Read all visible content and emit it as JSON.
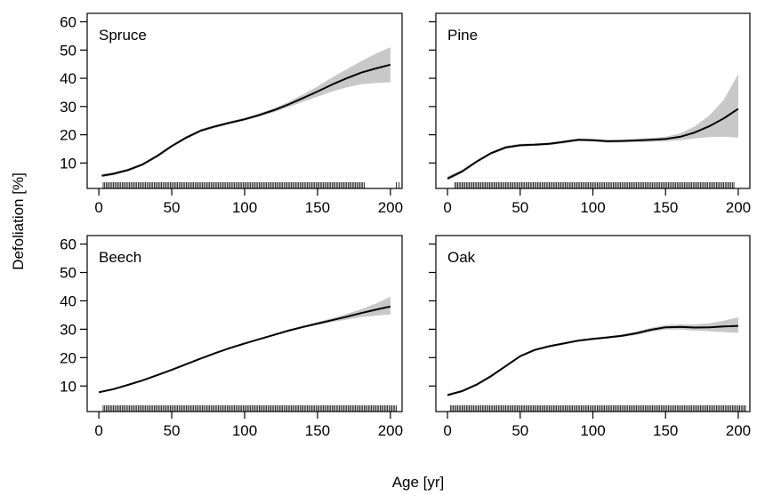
{
  "figure": {
    "ylabel": "Defoliation [%]",
    "xlabel": "Age [yr]"
  },
  "chart_data": [
    {
      "type": "line",
      "title": "Spruce",
      "xlim": [
        -8,
        208
      ],
      "ylim": [
        1,
        63
      ],
      "xticks": [
        0,
        50,
        100,
        150,
        200
      ],
      "yticks": [
        10,
        20,
        30,
        40,
        50,
        60
      ],
      "x": [
        2,
        10,
        20,
        30,
        40,
        50,
        60,
        70,
        80,
        90,
        100,
        110,
        120,
        130,
        140,
        150,
        160,
        170,
        180,
        190,
        200
      ],
      "y": [
        5.5,
        6.2,
        7.5,
        9.5,
        12.5,
        16,
        19,
        21.5,
        23,
        24.3,
        25.5,
        27,
        28.7,
        30.7,
        33,
        35.3,
        37.8,
        40,
        42,
        43.5,
        44.8
      ],
      "lower": [
        4.9,
        5.7,
        7.0,
        9.0,
        12.0,
        15.5,
        18.5,
        21.0,
        22.5,
        23.8,
        25.0,
        26.4,
        28.0,
        29.8,
        31.7,
        33.5,
        35.3,
        36.8,
        37.9,
        38.3,
        38.6
      ],
      "upper": [
        6.1,
        6.7,
        8.0,
        10.0,
        13.0,
        16.5,
        19.5,
        22.0,
        23.5,
        24.8,
        26.0,
        27.6,
        29.4,
        31.6,
        34.3,
        37.1,
        40.3,
        43.2,
        46.1,
        48.7,
        51.0
      ],
      "rug": {
        "from": 3,
        "to": 182,
        "outliers": [
          204,
          206
        ]
      }
    },
    {
      "type": "line",
      "title": "Pine",
      "xlim": [
        -8,
        208
      ],
      "ylim": [
        1,
        63
      ],
      "xticks": [
        0,
        50,
        100,
        150,
        200
      ],
      "yticks": [
        10,
        20,
        30,
        40,
        50,
        60
      ],
      "x": [
        0,
        10,
        20,
        30,
        40,
        50,
        60,
        70,
        80,
        90,
        100,
        110,
        120,
        130,
        140,
        150,
        160,
        170,
        180,
        190,
        200
      ],
      "y": [
        4.5,
        7,
        10.5,
        13.5,
        15.5,
        16.3,
        16.5,
        16.8,
        17.5,
        18.2,
        18.1,
        17.7,
        17.8,
        18,
        18.2,
        18.5,
        19.3,
        20.8,
        23,
        25.8,
        29.2
      ],
      "lower": [
        3.7,
        6.4,
        10.0,
        13.0,
        15.0,
        15.8,
        16.0,
        16.3,
        17.0,
        17.7,
        17.6,
        17.2,
        17.3,
        17.4,
        17.5,
        17.7,
        18.1,
        18.7,
        19.2,
        19.3,
        19.0
      ],
      "upper": [
        5.3,
        7.6,
        11.0,
        14.0,
        16.0,
        16.8,
        17.0,
        17.3,
        18.0,
        18.7,
        18.6,
        18.2,
        18.3,
        18.6,
        18.9,
        19.3,
        20.5,
        22.9,
        26.8,
        32.3,
        41.5
      ],
      "rug": {
        "from": 5,
        "to": 197,
        "outliers": []
      }
    },
    {
      "type": "line",
      "title": "Beech",
      "xlim": [
        -8,
        208
      ],
      "ylim": [
        1,
        63
      ],
      "xticks": [
        0,
        50,
        100,
        150,
        200
      ],
      "yticks": [
        10,
        20,
        30,
        40,
        50,
        60
      ],
      "x": [
        0,
        10,
        20,
        30,
        40,
        50,
        60,
        70,
        80,
        90,
        100,
        110,
        120,
        130,
        140,
        150,
        160,
        170,
        180,
        190,
        200
      ],
      "y": [
        7.8,
        8.9,
        10.4,
        12,
        13.8,
        15.7,
        17.7,
        19.7,
        21.6,
        23.4,
        25,
        26.5,
        28,
        29.5,
        30.8,
        32,
        33.2,
        34.4,
        35.7,
        36.9,
        38
      ],
      "lower": [
        7.5,
        8.6,
        10.1,
        11.7,
        13.5,
        15.4,
        17.4,
        19.4,
        21.3,
        23.1,
        24.7,
        26.2,
        27.7,
        29.1,
        30.4,
        31.5,
        32.5,
        33.4,
        34.3,
        34.8,
        35.2
      ],
      "upper": [
        8.1,
        9.2,
        10.7,
        12.3,
        14.1,
        16.0,
        18.0,
        20.0,
        21.9,
        23.7,
        25.3,
        26.8,
        28.3,
        29.9,
        31.2,
        32.5,
        33.9,
        35.4,
        37.1,
        39.0,
        41.5
      ],
      "rug": {
        "from": 3,
        "to": 204,
        "outliers": []
      }
    },
    {
      "type": "line",
      "title": "Oak",
      "xlim": [
        -8,
        208
      ],
      "ylim": [
        1,
        63
      ],
      "xticks": [
        0,
        50,
        100,
        150,
        200
      ],
      "yticks": [
        10,
        20,
        30,
        40,
        50,
        60
      ],
      "x": [
        0,
        10,
        20,
        30,
        40,
        50,
        60,
        70,
        80,
        90,
        100,
        110,
        120,
        130,
        140,
        150,
        160,
        170,
        180,
        190,
        200
      ],
      "y": [
        6.8,
        8.2,
        10.5,
        13.5,
        17,
        20.5,
        22.7,
        24,
        25,
        26,
        26.6,
        27.1,
        27.7,
        28.6,
        29.8,
        30.7,
        30.8,
        30.6,
        30.7,
        31,
        31.2
      ],
      "lower": [
        6.3,
        7.8,
        10.1,
        13.1,
        16.6,
        20.1,
        22.3,
        23.6,
        24.6,
        25.6,
        26.2,
        26.7,
        27.2,
        28.0,
        29.1,
        29.9,
        29.9,
        29.5,
        29.3,
        29.0,
        28.7
      ],
      "upper": [
        7.3,
        8.6,
        10.9,
        13.9,
        17.4,
        20.9,
        23.1,
        24.4,
        25.4,
        26.4,
        27.0,
        27.5,
        28.2,
        29.2,
        30.5,
        31.5,
        31.7,
        31.7,
        32.1,
        33.0,
        34.2
      ],
      "rug": {
        "from": 2,
        "to": 205,
        "outliers": []
      }
    }
  ]
}
